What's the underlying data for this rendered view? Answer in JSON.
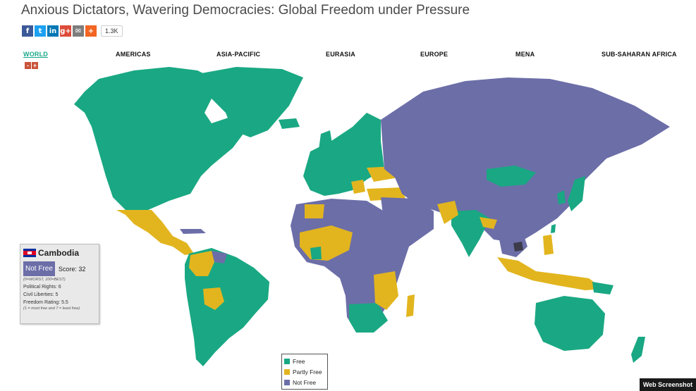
{
  "header": {
    "title": "Anxious Dictators, Wavering Democracies: Global Freedom under Pressure",
    "share_count": "1.3K",
    "share_icons": [
      "facebook-icon",
      "twitter-icon",
      "linkedin-icon",
      "google-plus-icon",
      "email-icon",
      "plus-icon"
    ]
  },
  "tabs": [
    {
      "label": "WORLD"
    },
    {
      "label": "AMERICAS"
    },
    {
      "label": "ASIA-PACIFIC"
    },
    {
      "label": "EURASIA"
    },
    {
      "label": "EUROPE"
    },
    {
      "label": "MENA"
    },
    {
      "label": "SUB-SAHARAN AFRICA"
    }
  ],
  "active_tab": "WORLD",
  "zoom": {
    "minus": "-",
    "plus": "+"
  },
  "infobox": {
    "country": "Cambodia",
    "status": "Not Free",
    "score_label": "Score: 32",
    "score_note": "(0=WORST, 100=BEST)",
    "political_rights": "Political Rights: 6",
    "civil_liberties": "Civil Liberties: 5",
    "freedom_rating": "Freedom Rating: 5.5",
    "rating_note": "(1 = most free and 7 = least free)"
  },
  "legend": {
    "items": [
      {
        "label": "Free",
        "color": "#19a883"
      },
      {
        "label": "Partly Free",
        "color": "#e2b51f"
      },
      {
        "label": "Not Free",
        "color": "#6c6ea8"
      }
    ]
  },
  "colors": {
    "free": "#19a883",
    "partly_free": "#e2b51f",
    "not_free": "#6c6ea8",
    "selected": "#3b3b4a",
    "accent": "#1aa889"
  },
  "watermark": "Web Screenshot"
}
